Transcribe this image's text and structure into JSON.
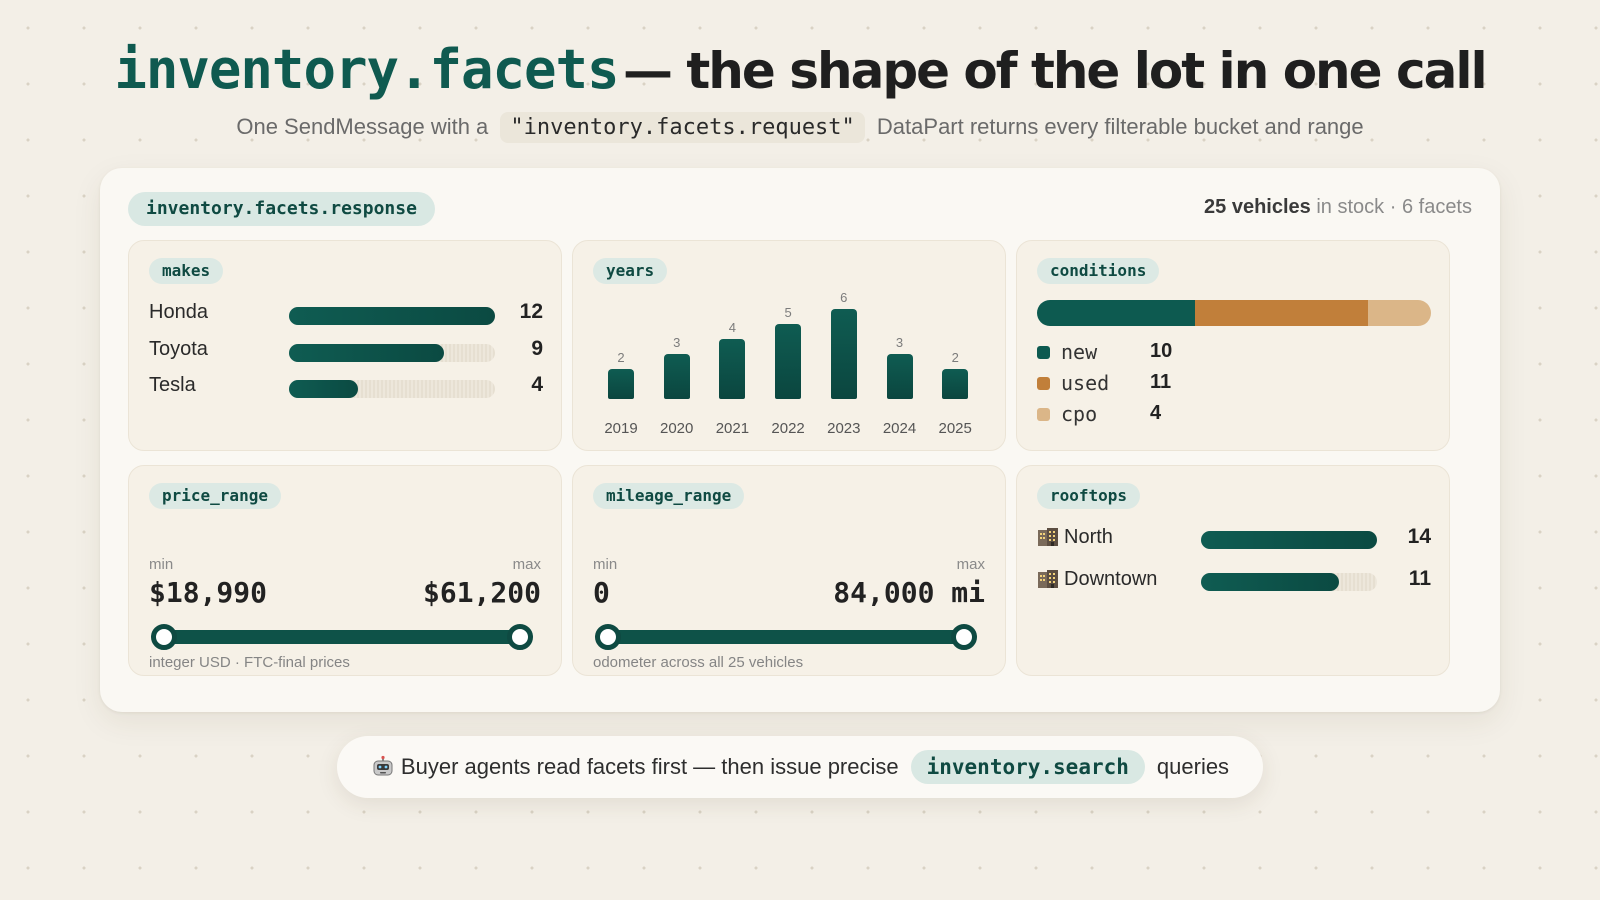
{
  "header": {
    "title_code": "inventory.facets",
    "title_text": "— the shape of the lot in one call",
    "subtitle_pre": "One SendMessage with a",
    "subtitle_code": "\"inventory.facets.request\"",
    "subtitle_post": "DataPart returns every filterable bucket and range"
  },
  "card": {
    "response_label": "inventory.facets.response",
    "summary_count": "25 vehicles",
    "summary_instock": "in stock",
    "summary_sep": "·",
    "summary_facets": "6 facets"
  },
  "makes": {
    "tag": "makes",
    "max": 12,
    "items": [
      {
        "label": "Honda",
        "count": 12
      },
      {
        "label": "Toyota",
        "count": 9
      },
      {
        "label": "Tesla",
        "count": 4
      }
    ]
  },
  "years": {
    "tag": "years",
    "max": 6,
    "items": [
      {
        "year": "2019",
        "count": 2
      },
      {
        "year": "2020",
        "count": 3
      },
      {
        "year": "2021",
        "count": 4
      },
      {
        "year": "2022",
        "count": 5
      },
      {
        "year": "2023",
        "count": 6
      },
      {
        "year": "2024",
        "count": 3
      },
      {
        "year": "2025",
        "count": 2
      }
    ]
  },
  "conditions": {
    "tag": "conditions",
    "total": 25,
    "items": [
      {
        "label": "new",
        "count": 10,
        "color": "#0d5a50"
      },
      {
        "label": "used",
        "count": 11,
        "color": "#c17f3a"
      },
      {
        "label": "cpo",
        "count": 4,
        "color": "#dbb688"
      }
    ]
  },
  "price_range": {
    "tag": "price_range",
    "min_label": "min",
    "max_label": "max",
    "min": "$18,990",
    "max": "$61,200",
    "footnote": "integer USD · FTC-final prices"
  },
  "mileage_range": {
    "tag": "mileage_range",
    "min_label": "min",
    "max_label": "max",
    "min": "0",
    "max": "84,000 mi",
    "footnote": "odometer across all 25 vehicles"
  },
  "rooftops": {
    "tag": "rooftops",
    "max": 14,
    "icon": "office-building-icon",
    "items": [
      {
        "label": "North",
        "count": 14
      },
      {
        "label": "Downtown",
        "count": 11
      }
    ]
  },
  "footer": {
    "icon": "robot-icon",
    "text_pre": "Buyer agents read facets first — then issue precise",
    "code": "inventory.search",
    "text_post": "queries"
  },
  "colors": {
    "accent": "#0f5a50",
    "used": "#c17f3a",
    "cpo": "#dbb688",
    "background": "#f3efe7"
  }
}
